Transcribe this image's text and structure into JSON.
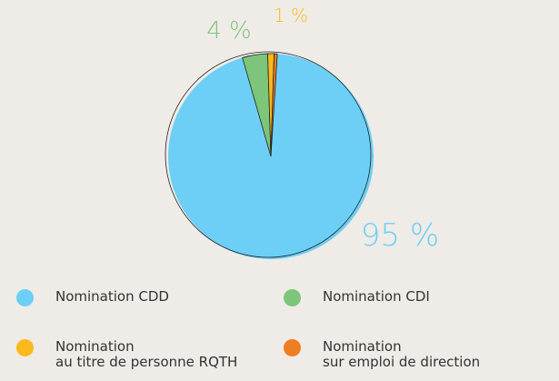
{
  "chart_data": {
    "type": "pie",
    "categories": [
      "Nomination CDD",
      "Nomination CDI",
      "Nomination\nau titre de personne RQTH",
      "Nomination\nsur emploi de direction"
    ],
    "values": [
      95,
      4,
      1,
      0.5
    ],
    "value_labels": [
      "95 %",
      "4 %",
      "1 %",
      null
    ],
    "colors": [
      "#6dcff6",
      "#7dc57a",
      "#fbb91b",
      "#ef7d22"
    ]
  }
}
